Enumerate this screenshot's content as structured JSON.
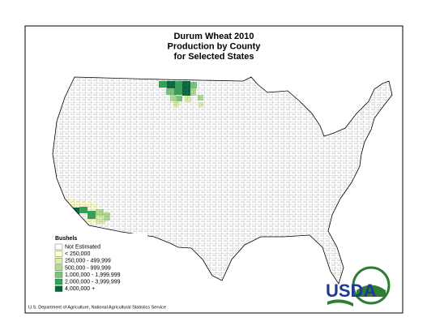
{
  "title": [
    "Durum Wheat 2010",
    "Production by County",
    "for Selected States"
  ],
  "legend": {
    "title": "Bushels",
    "items": [
      {
        "label": "Not Estimated",
        "color": "#ffffff"
      },
      {
        "label": "< 250,000",
        "color": "#ffffcc"
      },
      {
        "label": "250,000 -   499,999",
        "color": "#d9f0a3"
      },
      {
        "label": "500,000 -   999,999",
        "color": "#addd8e"
      },
      {
        "label": "1,000,000 - 1,999,999",
        "color": "#78c679"
      },
      {
        "label": "2,000,000 - 3,999,999",
        "color": "#31a354"
      },
      {
        "label": "4,000,000 +",
        "color": "#006837"
      }
    ]
  },
  "logo": "USDA",
  "footer": "U.S. Department of Agriculture, National Agricultural Statistics Service"
}
